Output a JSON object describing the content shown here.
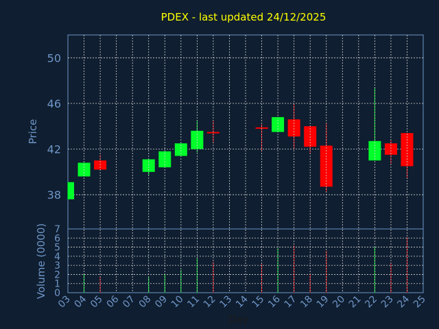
{
  "chart_data": {
    "type": "candlestick",
    "title": "PDEX - last updated 24/12/2025",
    "xlabel": "Day",
    "price_ylabel": "Price",
    "volume_ylabel": "Volume (0000)",
    "x_ticks": [
      "03",
      "04",
      "05",
      "06",
      "07",
      "08",
      "09",
      "10",
      "11",
      "12",
      "13",
      "14",
      "15",
      "16",
      "17",
      "18",
      "19",
      "20",
      "21",
      "22",
      "23",
      "24",
      "25"
    ],
    "price_ylim": [
      35,
      52
    ],
    "price_ticks": [
      38,
      42,
      46,
      50
    ],
    "volume_ylim": [
      0,
      7
    ],
    "volume_ticks": [
      0,
      1,
      2,
      3,
      4,
      5,
      6,
      7
    ],
    "grid": true,
    "colors": {
      "background": "#0f1e30",
      "up": "#00ff2a",
      "down": "#ff0000",
      "grid": "#d8d8d8",
      "axis_text": "#6f96c8",
      "title": "#ffff00"
    },
    "candles": [
      {
        "day": "03",
        "open": 37.6,
        "close": 39.1,
        "high": 39.1,
        "low": 37.6,
        "volume": 0
      },
      {
        "day": "04",
        "open": 39.6,
        "close": 40.8,
        "high": 40.8,
        "low": 39.6,
        "volume": 2.1
      },
      {
        "day": "05",
        "open": 41.0,
        "close": 40.2,
        "high": 41.5,
        "low": 40.2,
        "volume": 1.8
      },
      {
        "day": "08",
        "open": 40.0,
        "close": 41.1,
        "high": 41.1,
        "low": 39.7,
        "volume": 1.7
      },
      {
        "day": "09",
        "open": 40.4,
        "close": 41.8,
        "high": 41.8,
        "low": 40.4,
        "volume": 2.1
      },
      {
        "day": "10",
        "open": 41.4,
        "close": 42.5,
        "high": 42.5,
        "low": 41.4,
        "volume": 2.5
      },
      {
        "day": "11",
        "open": 42.0,
        "close": 43.6,
        "high": 44.5,
        "low": 41.7,
        "volume": 3.8
      },
      {
        "day": "12",
        "open": 43.5,
        "close": 43.4,
        "high": 44.5,
        "low": 42.5,
        "volume": 3.4
      },
      {
        "day": "15",
        "open": 43.9,
        "close": 43.8,
        "high": 44.2,
        "low": 41.8,
        "volume": 3.2
      },
      {
        "day": "16",
        "open": 43.5,
        "close": 44.8,
        "high": 44.8,
        "low": 43.5,
        "volume": 4.9
      },
      {
        "day": "17",
        "open": 44.6,
        "close": 43.1,
        "high": 46.0,
        "low": 42.0,
        "volume": 5.2
      },
      {
        "day": "18",
        "open": 44.0,
        "close": 42.2,
        "high": 44.0,
        "low": 41.6,
        "volume": 2.1
      },
      {
        "day": "19",
        "open": 42.3,
        "close": 38.7,
        "high": 44.3,
        "low": 38.2,
        "volume": 4.6
      },
      {
        "day": "22",
        "open": 41.0,
        "close": 42.7,
        "high": 47.4,
        "low": 41.0,
        "volume": 5.0
      },
      {
        "day": "23",
        "open": 42.5,
        "close": 41.5,
        "high": 42.8,
        "low": 40.7,
        "volume": 3.3
      },
      {
        "day": "24",
        "open": 43.4,
        "close": 40.5,
        "high": 43.4,
        "low": 39.4,
        "volume": 6.1
      }
    ]
  }
}
